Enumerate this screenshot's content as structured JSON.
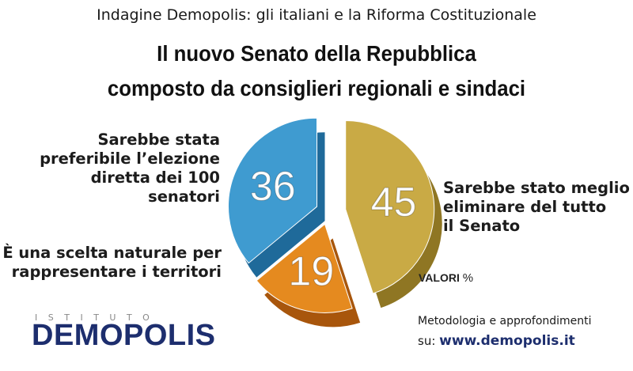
{
  "header": {
    "subtitle": "Indagine Demopolis: gli italiani e la Riforma Costituzionale",
    "title_line1": "Il nuovo Senato della Repubblica",
    "title_line2": "composto da consiglieri regionali e sindaci"
  },
  "chart_data": {
    "type": "pie",
    "unit_label": "VALORI",
    "unit_symbol": "%",
    "slices": [
      {
        "label_lines": [
          "Sarebbe stato meglio",
          "eliminare del tutto",
          "il Senato"
        ],
        "value": 45,
        "color": "#c9aa45"
      },
      {
        "label_lines": [
          "È una scelta naturale per",
          "rappresentare i territori"
        ],
        "value": 19,
        "color": "#e58a1f"
      },
      {
        "label_lines": [
          "Sarebbe stata",
          "preferibile l’elezione",
          "diretta dei 100 senatori"
        ],
        "value": 36,
        "color": "#3f9bd0"
      }
    ]
  },
  "footer": {
    "logo_top": "ISTITUTO",
    "logo_main": "DEMOPOLIS",
    "method_text": "Metodologia e approfondimenti",
    "url_prefix": "su: ",
    "url": "www.demopolis.it"
  },
  "colors": {
    "brand_navy": "#1d2e6e",
    "slice_45_side": "#8f7623",
    "slice_19_side": "#a8560c",
    "slice_36_side": "#1f6a9a"
  }
}
